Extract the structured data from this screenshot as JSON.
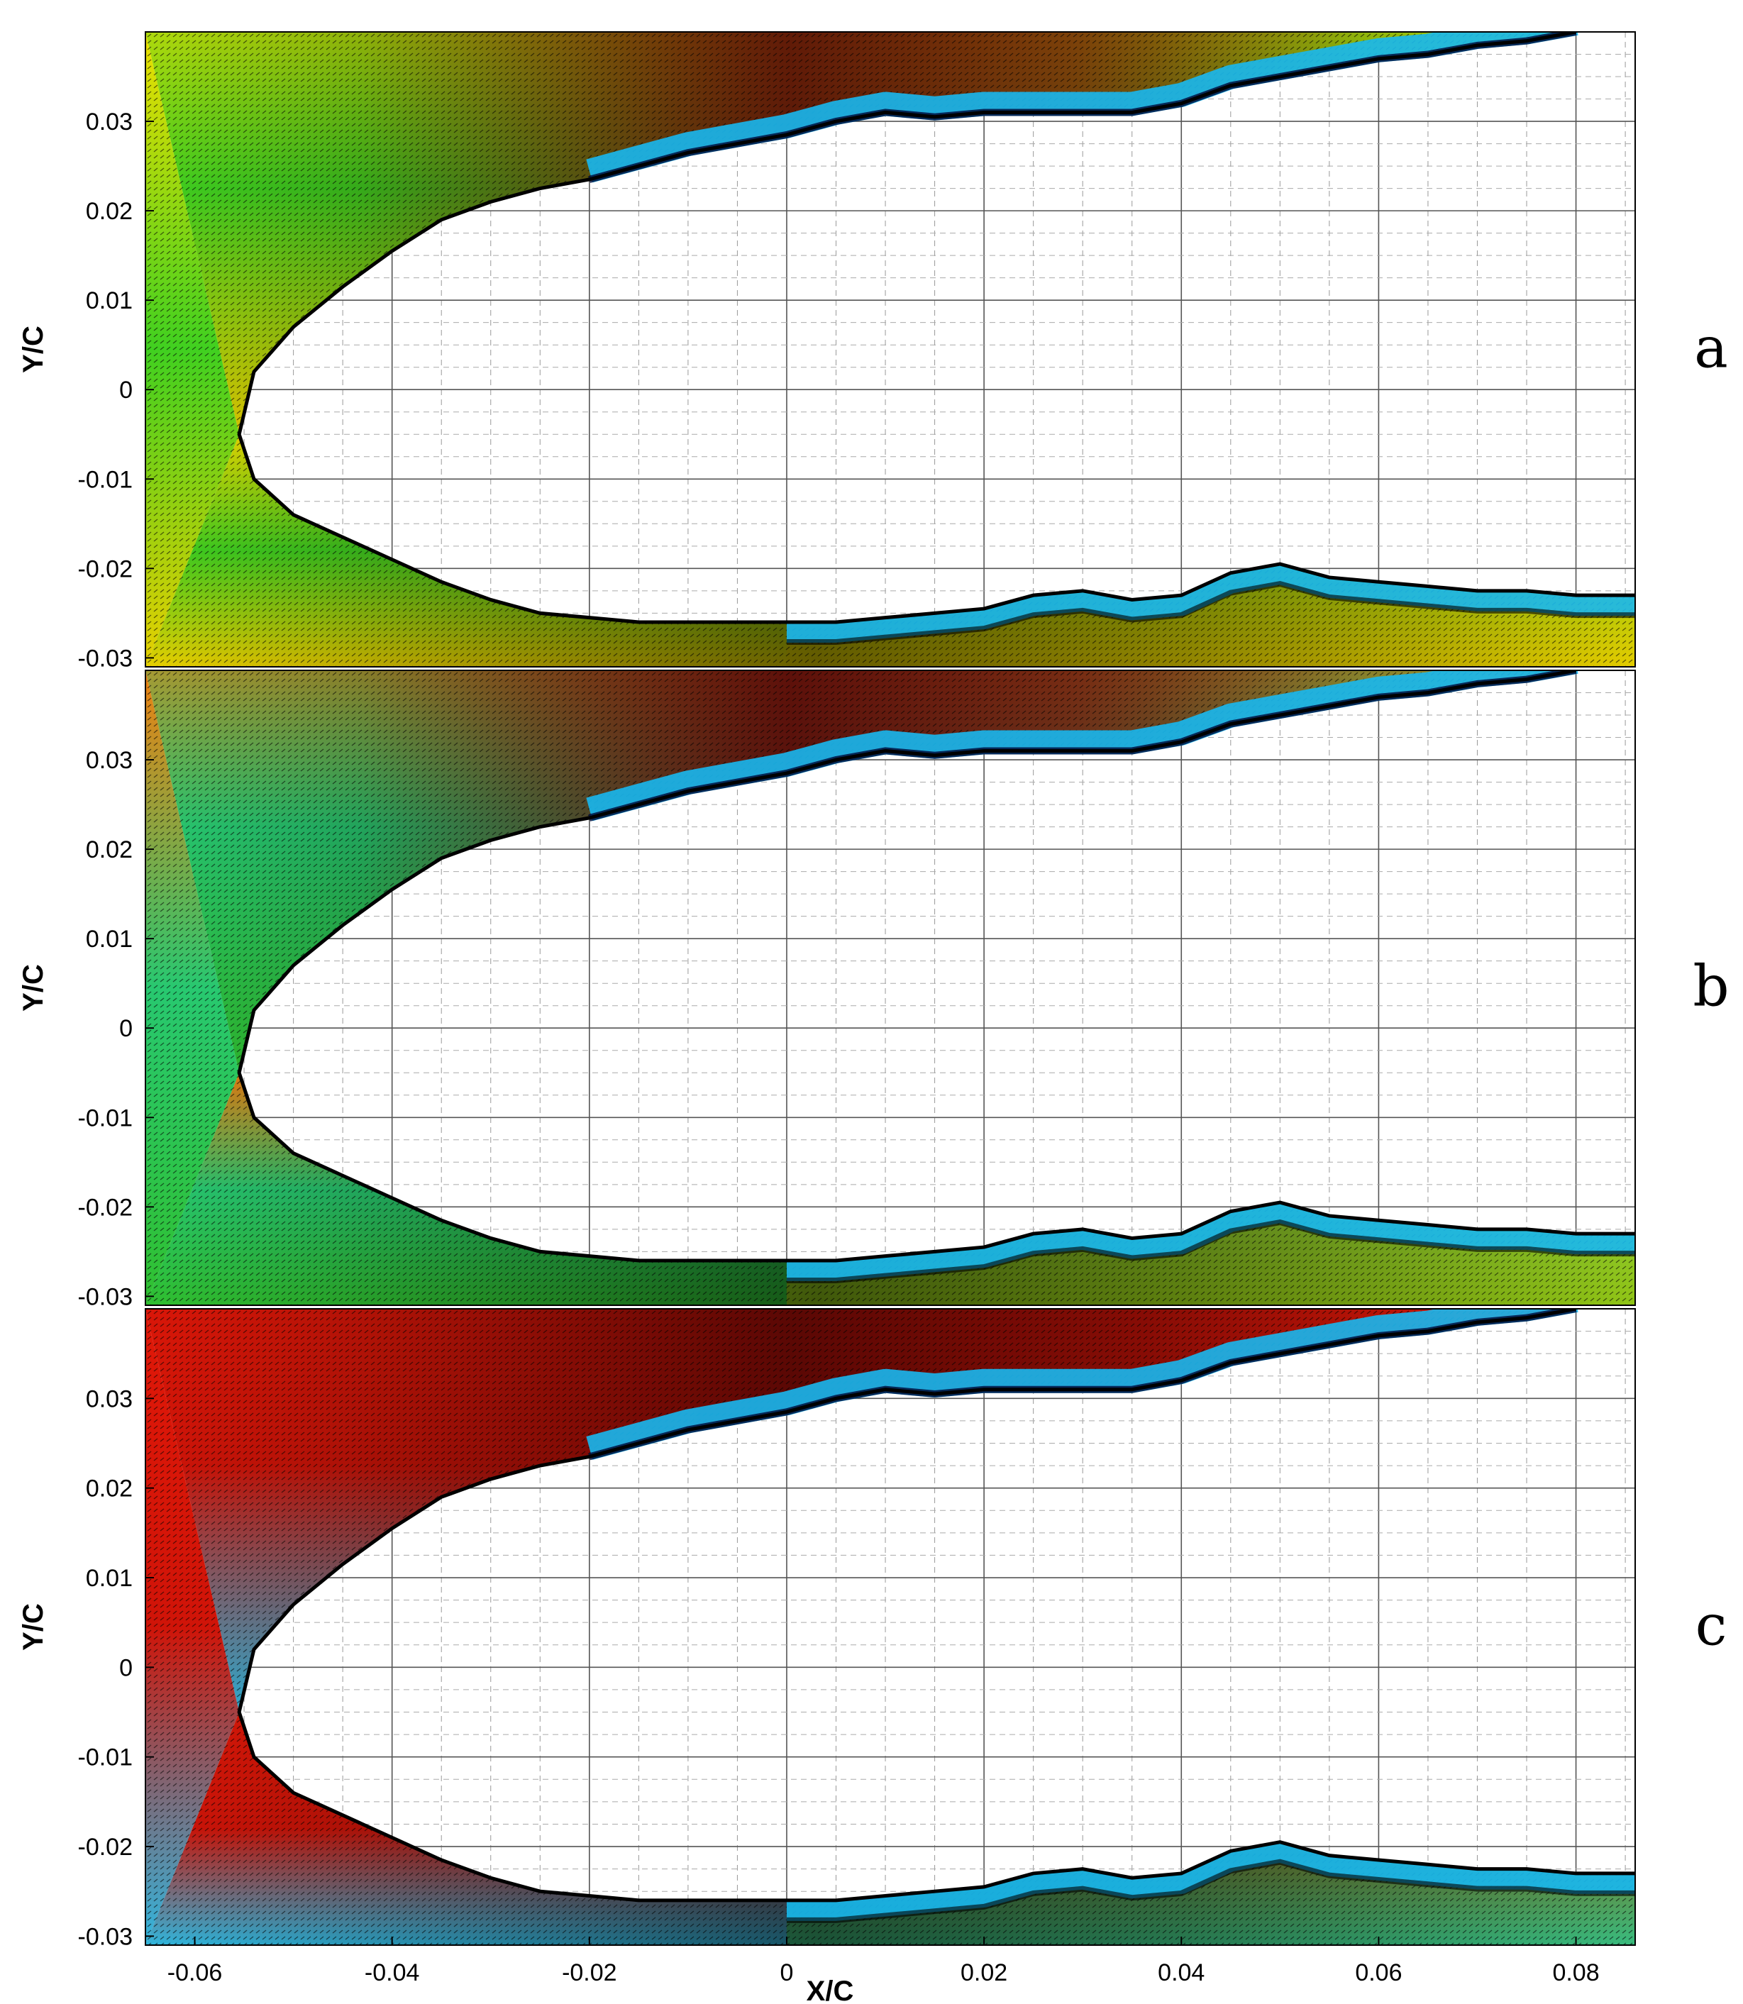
{
  "figure": {
    "panel_labels": [
      "a",
      "b",
      "c"
    ]
  },
  "chart_data": [
    {
      "type": "vector-field",
      "panel": "a",
      "xlabel": "",
      "ylabel": "Y/C",
      "xlim": [
        -0.065,
        0.086
      ],
      "ylim": [
        -0.031,
        0.04
      ],
      "x_ticks": [],
      "y_ticks": [
        -0.03,
        -0.02,
        -0.01,
        0,
        0.01,
        0.02,
        0.03
      ],
      "y_tick_labels": [
        "-0.03",
        "-0.02",
        "-0.01",
        "0",
        "0.01",
        "0.02",
        "0.03"
      ],
      "grid": true,
      "colors": {
        "upstream_top": "#f0e000",
        "upstream_mid": "#40d020",
        "upstream_bottom": "#e8d000",
        "top_downstream": "#e02010",
        "boundary_layer": "#18b8f0",
        "lower_wake": "#e0c800"
      },
      "body_upper": [
        [
          -0.0555,
          -0.005
        ],
        [
          -0.054,
          0.002
        ],
        [
          -0.05,
          0.007
        ],
        [
          -0.045,
          0.0115
        ],
        [
          -0.04,
          0.0155
        ],
        [
          -0.035,
          0.019
        ],
        [
          -0.03,
          0.021
        ],
        [
          -0.025,
          0.0225
        ],
        [
          -0.02,
          0.0235
        ],
        [
          -0.015,
          0.025
        ],
        [
          -0.01,
          0.0265
        ],
        [
          -0.005,
          0.0275
        ],
        [
          0.0,
          0.0285
        ],
        [
          0.005,
          0.03
        ],
        [
          0.01,
          0.031
        ],
        [
          0.015,
          0.0305
        ],
        [
          0.02,
          0.031
        ],
        [
          0.025,
          0.031
        ],
        [
          0.03,
          0.031
        ],
        [
          0.035,
          0.031
        ],
        [
          0.04,
          0.032
        ],
        [
          0.045,
          0.034
        ],
        [
          0.05,
          0.035
        ],
        [
          0.055,
          0.036
        ],
        [
          0.06,
          0.037
        ],
        [
          0.065,
          0.0375
        ],
        [
          0.07,
          0.0385
        ],
        [
          0.075,
          0.039
        ],
        [
          0.08,
          0.04
        ]
      ],
      "body_lower": [
        [
          -0.0555,
          -0.005
        ],
        [
          -0.054,
          -0.01
        ],
        [
          -0.05,
          -0.014
        ],
        [
          -0.045,
          -0.0165
        ],
        [
          -0.04,
          -0.019
        ],
        [
          -0.035,
          -0.0215
        ],
        [
          -0.03,
          -0.0235
        ],
        [
          -0.025,
          -0.025
        ],
        [
          -0.02,
          -0.0255
        ],
        [
          -0.015,
          -0.026
        ],
        [
          -0.01,
          -0.026
        ],
        [
          -0.005,
          -0.026
        ],
        [
          0.0,
          -0.026
        ],
        [
          0.005,
          -0.026
        ],
        [
          0.01,
          -0.0255
        ],
        [
          0.015,
          -0.025
        ],
        [
          0.02,
          -0.0245
        ],
        [
          0.025,
          -0.023
        ],
        [
          0.03,
          -0.0225
        ],
        [
          0.035,
          -0.0235
        ],
        [
          0.04,
          -0.023
        ],
        [
          0.045,
          -0.0205
        ],
        [
          0.05,
          -0.0195
        ],
        [
          0.055,
          -0.021
        ],
        [
          0.06,
          -0.0215
        ],
        [
          0.065,
          -0.022
        ],
        [
          0.07,
          -0.0225
        ],
        [
          0.075,
          -0.0225
        ],
        [
          0.08,
          -0.023
        ],
        [
          0.086,
          -0.023
        ]
      ]
    },
    {
      "type": "vector-field",
      "panel": "b",
      "xlabel": "",
      "ylabel": "Y/C",
      "xlim": [
        -0.065,
        0.086
      ],
      "ylim": [
        -0.031,
        0.04
      ],
      "x_ticks": [],
      "y_ticks": [
        -0.03,
        -0.02,
        -0.01,
        0,
        0.01,
        0.02,
        0.03
      ],
      "y_tick_labels": [
        "-0.03",
        "-0.02",
        "-0.01",
        "0",
        "0.01",
        "0.02",
        "0.03"
      ],
      "grid": true,
      "colors": {
        "upstream_top": "#f08010",
        "upstream_mid": "#28c870",
        "upstream_bottom": "#30c030",
        "top_downstream": "#d81010",
        "boundary_layer": "#18b8f0",
        "lower_wake": "#e0c800"
      },
      "body_upper": [
        [
          -0.0555,
          -0.005
        ],
        [
          -0.054,
          0.002
        ],
        [
          -0.05,
          0.007
        ],
        [
          -0.045,
          0.0115
        ],
        [
          -0.04,
          0.0155
        ],
        [
          -0.035,
          0.019
        ],
        [
          -0.03,
          0.021
        ],
        [
          -0.025,
          0.0225
        ],
        [
          -0.02,
          0.0235
        ],
        [
          -0.015,
          0.025
        ],
        [
          -0.01,
          0.0265
        ],
        [
          -0.005,
          0.0275
        ],
        [
          0.0,
          0.0285
        ],
        [
          0.005,
          0.03
        ],
        [
          0.01,
          0.031
        ],
        [
          0.015,
          0.0305
        ],
        [
          0.02,
          0.031
        ],
        [
          0.025,
          0.031
        ],
        [
          0.03,
          0.031
        ],
        [
          0.035,
          0.031
        ],
        [
          0.04,
          0.032
        ],
        [
          0.045,
          0.034
        ],
        [
          0.05,
          0.035
        ],
        [
          0.055,
          0.036
        ],
        [
          0.06,
          0.037
        ],
        [
          0.065,
          0.0375
        ],
        [
          0.07,
          0.0385
        ],
        [
          0.075,
          0.039
        ],
        [
          0.08,
          0.04
        ]
      ],
      "body_lower": [
        [
          -0.0555,
          -0.005
        ],
        [
          -0.054,
          -0.01
        ],
        [
          -0.05,
          -0.014
        ],
        [
          -0.045,
          -0.0165
        ],
        [
          -0.04,
          -0.019
        ],
        [
          -0.035,
          -0.0215
        ],
        [
          -0.03,
          -0.0235
        ],
        [
          -0.025,
          -0.025
        ],
        [
          -0.02,
          -0.0255
        ],
        [
          -0.015,
          -0.026
        ],
        [
          -0.01,
          -0.026
        ],
        [
          -0.005,
          -0.026
        ],
        [
          0.0,
          -0.026
        ],
        [
          0.005,
          -0.026
        ],
        [
          0.01,
          -0.0255
        ],
        [
          0.015,
          -0.025
        ],
        [
          0.02,
          -0.0245
        ],
        [
          0.025,
          -0.023
        ],
        [
          0.03,
          -0.0225
        ],
        [
          0.035,
          -0.0235
        ],
        [
          0.04,
          -0.023
        ],
        [
          0.045,
          -0.0205
        ],
        [
          0.05,
          -0.0195
        ],
        [
          0.055,
          -0.021
        ],
        [
          0.06,
          -0.0215
        ],
        [
          0.065,
          -0.022
        ],
        [
          0.07,
          -0.0225
        ],
        [
          0.075,
          -0.0225
        ],
        [
          0.08,
          -0.023
        ],
        [
          0.086,
          -0.023
        ]
      ]
    },
    {
      "type": "vector-field",
      "panel": "c",
      "xlabel": "X/C",
      "ylabel": "Y/C",
      "xlim": [
        -0.065,
        0.086
      ],
      "ylim": [
        -0.031,
        0.04
      ],
      "x_ticks": [
        -0.06,
        -0.04,
        -0.02,
        0,
        0.02,
        0.04,
        0.06,
        0.08
      ],
      "x_tick_labels": [
        "-0.06",
        "-0.04",
        "-0.02",
        "0",
        "0.02",
        "0.04",
        "0.06",
        "0.08"
      ],
      "y_ticks": [
        -0.03,
        -0.02,
        -0.01,
        0,
        0.01,
        0.02,
        0.03
      ],
      "y_tick_labels": [
        "-0.03",
        "-0.02",
        "-0.01",
        "0",
        "0.01",
        "0.02",
        "0.03"
      ],
      "grid": true,
      "colors": {
        "upstream_top": "#e01808",
        "upstream_mid": "#d01408",
        "upstream_bottom": "#30b8e0",
        "top_downstream": "#c81008",
        "boundary_layer": "#18b8f0",
        "lower_wake": "#40c030"
      },
      "body_upper": [
        [
          -0.0555,
          -0.005
        ],
        [
          -0.054,
          0.002
        ],
        [
          -0.05,
          0.007
        ],
        [
          -0.045,
          0.0115
        ],
        [
          -0.04,
          0.0155
        ],
        [
          -0.035,
          0.019
        ],
        [
          -0.03,
          0.021
        ],
        [
          -0.025,
          0.0225
        ],
        [
          -0.02,
          0.0235
        ],
        [
          -0.015,
          0.025
        ],
        [
          -0.01,
          0.0265
        ],
        [
          -0.005,
          0.0275
        ],
        [
          0.0,
          0.0285
        ],
        [
          0.005,
          0.03
        ],
        [
          0.01,
          0.031
        ],
        [
          0.015,
          0.0305
        ],
        [
          0.02,
          0.031
        ],
        [
          0.025,
          0.031
        ],
        [
          0.03,
          0.031
        ],
        [
          0.035,
          0.031
        ],
        [
          0.04,
          0.032
        ],
        [
          0.045,
          0.034
        ],
        [
          0.05,
          0.035
        ],
        [
          0.055,
          0.036
        ],
        [
          0.06,
          0.037
        ],
        [
          0.065,
          0.0375
        ],
        [
          0.07,
          0.0385
        ],
        [
          0.075,
          0.039
        ],
        [
          0.08,
          0.04
        ]
      ],
      "body_lower": [
        [
          -0.0555,
          -0.005
        ],
        [
          -0.054,
          -0.01
        ],
        [
          -0.05,
          -0.014
        ],
        [
          -0.045,
          -0.0165
        ],
        [
          -0.04,
          -0.019
        ],
        [
          -0.035,
          -0.0215
        ],
        [
          -0.03,
          -0.0235
        ],
        [
          -0.025,
          -0.025
        ],
        [
          -0.02,
          -0.0255
        ],
        [
          -0.015,
          -0.026
        ],
        [
          -0.01,
          -0.026
        ],
        [
          -0.005,
          -0.026
        ],
        [
          0.0,
          -0.026
        ],
        [
          0.005,
          -0.026
        ],
        [
          0.01,
          -0.0255
        ],
        [
          0.015,
          -0.025
        ],
        [
          0.02,
          -0.0245
        ],
        [
          0.025,
          -0.023
        ],
        [
          0.03,
          -0.0225
        ],
        [
          0.035,
          -0.0235
        ],
        [
          0.04,
          -0.023
        ],
        [
          0.045,
          -0.0205
        ],
        [
          0.05,
          -0.0195
        ],
        [
          0.055,
          -0.021
        ],
        [
          0.06,
          -0.0215
        ],
        [
          0.065,
          -0.022
        ],
        [
          0.07,
          -0.0225
        ],
        [
          0.075,
          -0.0225
        ],
        [
          0.08,
          -0.023
        ],
        [
          0.086,
          -0.023
        ]
      ]
    }
  ]
}
